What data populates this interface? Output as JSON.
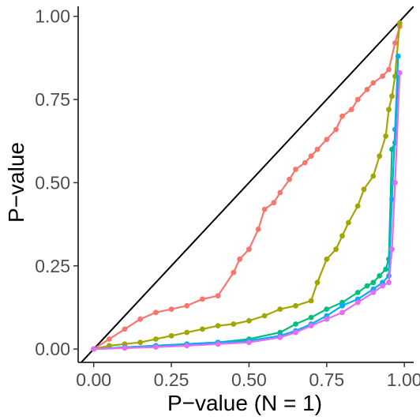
{
  "chart_data": {
    "type": "line",
    "title": "",
    "xlabel": "P−value (N = 1)",
    "ylabel": "P−value",
    "xlim": [
      -0.05,
      1.03
    ],
    "ylim": [
      -0.04,
      1.03
    ],
    "x_ticks": [
      0.0,
      0.25,
      0.5,
      0.75,
      1.0
    ],
    "x_tick_labels": [
      "0.00",
      "0.25",
      "0.50",
      "0.75",
      "1.00"
    ],
    "y_ticks": [
      0.0,
      0.25,
      0.5,
      0.75,
      1.0
    ],
    "y_tick_labels": [
      "0.00",
      "0.25",
      "0.50",
      "0.75",
      "1.00"
    ],
    "grid": false,
    "legend": "none",
    "reference_line": {
      "x": [
        0,
        1
      ],
      "y": [
        0,
        1
      ],
      "color": "#000000"
    },
    "series": [
      {
        "color": "#F8766D",
        "x": [
          0.0,
          0.05,
          0.1,
          0.15,
          0.2,
          0.25,
          0.3,
          0.35,
          0.4,
          0.45,
          0.47,
          0.5,
          0.53,
          0.55,
          0.58,
          0.6,
          0.63,
          0.65,
          0.68,
          0.7,
          0.72,
          0.75,
          0.78,
          0.8,
          0.83,
          0.85,
          0.88,
          0.9,
          0.93,
          0.95,
          0.97,
          0.985
        ],
        "y": [
          0.0,
          0.03,
          0.06,
          0.09,
          0.11,
          0.12,
          0.13,
          0.15,
          0.16,
          0.23,
          0.27,
          0.3,
          0.36,
          0.42,
          0.44,
          0.47,
          0.51,
          0.54,
          0.56,
          0.58,
          0.6,
          0.63,
          0.66,
          0.7,
          0.72,
          0.75,
          0.78,
          0.8,
          0.82,
          0.84,
          0.92,
          0.97
        ]
      },
      {
        "color": "#A3A500",
        "x": [
          0.0,
          0.05,
          0.1,
          0.15,
          0.2,
          0.25,
          0.3,
          0.35,
          0.4,
          0.45,
          0.5,
          0.55,
          0.6,
          0.65,
          0.7,
          0.72,
          0.75,
          0.78,
          0.8,
          0.82,
          0.85,
          0.87,
          0.9,
          0.92,
          0.94,
          0.95,
          0.96,
          0.97,
          0.985
        ],
        "y": [
          0.0,
          0.01,
          0.015,
          0.02,
          0.03,
          0.04,
          0.05,
          0.06,
          0.07,
          0.075,
          0.085,
          0.1,
          0.12,
          0.13,
          0.145,
          0.2,
          0.27,
          0.3,
          0.34,
          0.38,
          0.43,
          0.48,
          0.52,
          0.58,
          0.64,
          0.72,
          0.76,
          0.82,
          0.98
        ]
      },
      {
        "color": "#00BF7D",
        "x": [
          0.0,
          0.1,
          0.2,
          0.3,
          0.4,
          0.5,
          0.6,
          0.65,
          0.7,
          0.75,
          0.8,
          0.85,
          0.88,
          0.9,
          0.92,
          0.94,
          0.95,
          0.96,
          0.97,
          0.98
        ],
        "y": [
          0.0,
          0.005,
          0.01,
          0.015,
          0.02,
          0.03,
          0.05,
          0.075,
          0.095,
          0.12,
          0.14,
          0.17,
          0.19,
          0.2,
          0.22,
          0.24,
          0.27,
          0.6,
          0.62,
          0.83
        ]
      },
      {
        "color": "#00B0F6",
        "x": [
          0.0,
          0.1,
          0.2,
          0.3,
          0.4,
          0.5,
          0.6,
          0.65,
          0.7,
          0.75,
          0.8,
          0.85,
          0.9,
          0.93,
          0.95,
          0.96,
          0.97,
          0.98
        ],
        "y": [
          0.0,
          0.005,
          0.01,
          0.015,
          0.02,
          0.025,
          0.04,
          0.055,
          0.075,
          0.1,
          0.13,
          0.15,
          0.18,
          0.2,
          0.22,
          0.45,
          0.66,
          0.88
        ]
      },
      {
        "color": "#E76BF3",
        "x": [
          0.0,
          0.1,
          0.2,
          0.3,
          0.4,
          0.5,
          0.6,
          0.65,
          0.7,
          0.75,
          0.8,
          0.85,
          0.9,
          0.93,
          0.95,
          0.96,
          0.97,
          0.985
        ],
        "y": [
          0.0,
          0.003,
          0.006,
          0.01,
          0.015,
          0.02,
          0.035,
          0.05,
          0.07,
          0.09,
          0.11,
          0.14,
          0.17,
          0.19,
          0.2,
          0.3,
          0.5,
          0.83
        ]
      }
    ]
  }
}
